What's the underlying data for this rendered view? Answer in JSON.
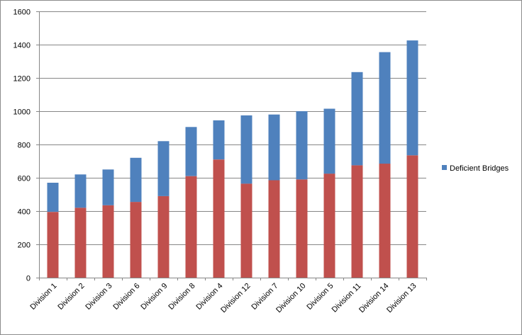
{
  "chart_data": {
    "type": "bar",
    "stacked": true,
    "categories": [
      "Division 1",
      "Division 2",
      "Division 3",
      "Division 6",
      "Division 9",
      "Division 8",
      "Division 4",
      "Division 12",
      "Division 7",
      "Division 10",
      "Division 5",
      "Division 11",
      "Division 14",
      "Division 13"
    ],
    "series": [
      {
        "values": [
          395,
          420,
          435,
          455,
          490,
          610,
          710,
          565,
          585,
          590,
          625,
          675,
          685,
          735
        ],
        "color": "#c0504d"
      },
      {
        "name": "Deficient Bridges",
        "values": [
          175,
          200,
          215,
          265,
          330,
          295,
          235,
          410,
          395,
          410,
          390,
          560,
          670,
          690
        ],
        "color": "#4f81bd"
      }
    ],
    "ylim": [
      0,
      1600
    ],
    "yticks": [
      "0",
      "200",
      "400",
      "600",
      "800",
      "1000",
      "1200",
      "1400",
      "1600"
    ],
    "grid": true,
    "legend": {
      "position": "right",
      "entries": [
        "Deficient Bridges"
      ]
    },
    "title": "",
    "xlabel": "",
    "ylabel": ""
  }
}
